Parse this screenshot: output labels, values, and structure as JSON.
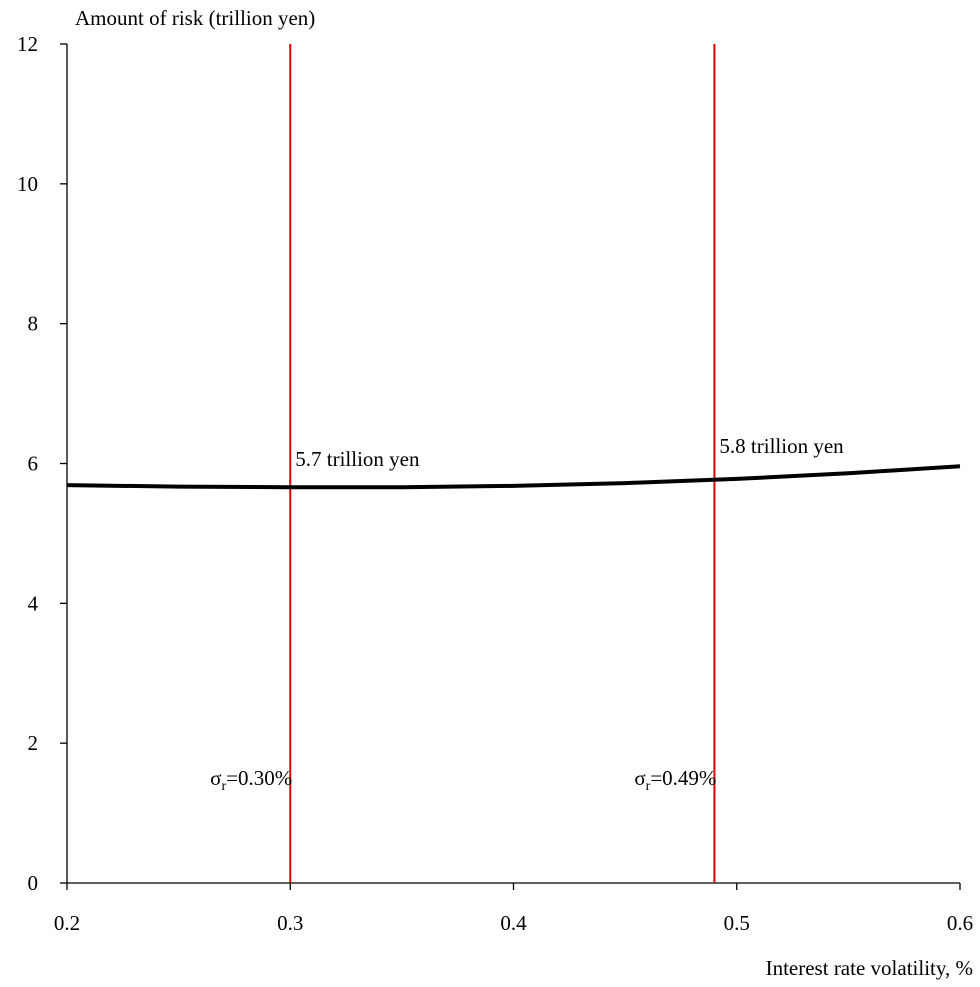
{
  "chart_data": {
    "type": "line",
    "y_label": "Amount of risk (trillion yen)",
    "x_label": "Interest rate volatility, %",
    "x": [
      0.2,
      0.25,
      0.3,
      0.35,
      0.4,
      0.45,
      0.5,
      0.55,
      0.6
    ],
    "series": [
      {
        "name": "Amount of risk",
        "color": "#000000",
        "values": [
          5.69,
          5.67,
          5.66,
          5.66,
          5.68,
          5.72,
          5.78,
          5.86,
          5.96
        ]
      }
    ],
    "xlim": [
      0.2,
      0.6
    ],
    "xticks": [
      0.2,
      0.3,
      0.4,
      0.5,
      0.6
    ],
    "ylim": [
      0,
      12
    ],
    "yticks": [
      0,
      2,
      4,
      6,
      8,
      10,
      12
    ],
    "grid": false,
    "vlines": [
      {
        "x": 0.3,
        "color": "#e00000",
        "symbol": "σ",
        "subscript": "r",
        "text": "=0.30%",
        "value_label": "5.7 trillion yen"
      },
      {
        "x": 0.49,
        "color": "#e00000",
        "symbol": "σ",
        "subscript": "r",
        "text": "=0.49%",
        "value_label": "5.8 trillion yen"
      }
    ]
  }
}
